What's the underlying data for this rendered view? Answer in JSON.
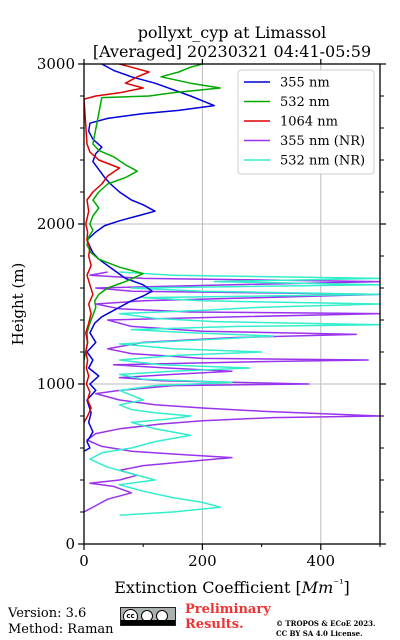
{
  "chart_data": {
    "type": "line",
    "title": "pollyxt_cyp at Limassol",
    "subtitle": "[Averaged] 20230321 04:41-05:59",
    "xlabel": "Extinction Coefficient [Mm⁻¹]",
    "ylabel": "Height (m)",
    "xlim": [
      0,
      500
    ],
    "ylim": [
      0,
      3000
    ],
    "xticks": [
      "0",
      "200",
      "400"
    ],
    "xtick_values": [
      0,
      200,
      400
    ],
    "yticks": [
      "0",
      "1000",
      "2000",
      "3000"
    ],
    "ytick_values": [
      0,
      1000,
      2000,
      3000
    ],
    "grid": true,
    "legend_position": "top-right",
    "series": [
      {
        "name": "355 nm",
        "color": "#0000dd",
        "points": [
          [
            0,
            580
          ],
          [
            10,
            600
          ],
          [
            5,
            640
          ],
          [
            15,
            700
          ],
          [
            8,
            760
          ],
          [
            12,
            820
          ],
          [
            5,
            900
          ],
          [
            20,
            960
          ],
          [
            10,
            1000
          ],
          [
            25,
            1050
          ],
          [
            8,
            1100
          ],
          [
            15,
            1150
          ],
          [
            5,
            1200
          ],
          [
            20,
            1260
          ],
          [
            10,
            1320
          ],
          [
            18,
            1380
          ],
          [
            30,
            1420
          ],
          [
            55,
            1470
          ],
          [
            80,
            1520
          ],
          [
            100,
            1550
          ],
          [
            115,
            1580
          ],
          [
            100,
            1620
          ],
          [
            70,
            1660
          ],
          [
            55,
            1700
          ],
          [
            40,
            1740
          ],
          [
            25,
            1780
          ],
          [
            15,
            1820
          ],
          [
            10,
            1860
          ],
          [
            5,
            1900
          ],
          [
            20,
            1950
          ],
          [
            35,
            1990
          ],
          [
            60,
            2020
          ],
          [
            90,
            2050
          ],
          [
            120,
            2080
          ],
          [
            100,
            2120
          ],
          [
            80,
            2150
          ],
          [
            60,
            2200
          ],
          [
            45,
            2250
          ],
          [
            35,
            2290
          ],
          [
            25,
            2340
          ],
          [
            15,
            2390
          ],
          [
            20,
            2440
          ],
          [
            30,
            2480
          ],
          [
            15,
            2530
          ],
          [
            8,
            2580
          ],
          [
            10,
            2630
          ],
          [
            40,
            2660
          ],
          [
            100,
            2690
          ],
          [
            160,
            2710
          ],
          [
            220,
            2740
          ],
          [
            200,
            2770
          ],
          [
            180,
            2800
          ],
          [
            150,
            2840
          ],
          [
            120,
            2880
          ],
          [
            80,
            2920
          ],
          [
            50,
            2960
          ],
          [
            30,
            3000
          ]
        ]
      },
      {
        "name": "532 nm",
        "color": "#00aa00",
        "points": [
          [
            0,
            1150
          ],
          [
            3,
            1200
          ],
          [
            6,
            1260
          ],
          [
            5,
            1320
          ],
          [
            10,
            1380
          ],
          [
            15,
            1430
          ],
          [
            20,
            1480
          ],
          [
            18,
            1520
          ],
          [
            25,
            1560
          ],
          [
            40,
            1600
          ],
          [
            70,
            1640
          ],
          [
            100,
            1690
          ],
          [
            60,
            1730
          ],
          [
            25,
            1780
          ],
          [
            12,
            1820
          ],
          [
            5,
            1870
          ],
          [
            8,
            1920
          ],
          [
            15,
            1960
          ],
          [
            10,
            2000
          ],
          [
            15,
            2050
          ],
          [
            25,
            2100
          ],
          [
            15,
            2150
          ],
          [
            25,
            2200
          ],
          [
            40,
            2250
          ],
          [
            70,
            2290
          ],
          [
            90,
            2330
          ],
          [
            70,
            2370
          ],
          [
            50,
            2420
          ],
          [
            25,
            2460
          ],
          [
            15,
            2500
          ],
          [
            30,
            2790
          ],
          [
            110,
            2800
          ],
          [
            150,
            2820
          ],
          [
            230,
            2850
          ],
          [
            180,
            2880
          ],
          [
            130,
            2920
          ],
          [
            160,
            2950
          ],
          [
            180,
            2980
          ],
          [
            200,
            3000
          ]
        ]
      },
      {
        "name": "1064 nm",
        "color": "#dd0000",
        "points": [
          [
            0,
            760
          ],
          [
            6,
            800
          ],
          [
            12,
            850
          ],
          [
            6,
            900
          ],
          [
            10,
            950
          ],
          [
            4,
            1000
          ],
          [
            8,
            1050
          ],
          [
            4,
            1100
          ],
          [
            6,
            1150
          ],
          [
            3,
            1200
          ],
          [
            6,
            1260
          ],
          [
            3,
            1320
          ],
          [
            8,
            1380
          ],
          [
            12,
            1440
          ],
          [
            8,
            1500
          ],
          [
            15,
            1560
          ],
          [
            10,
            1620
          ],
          [
            5,
            1680
          ],
          [
            12,
            1740
          ],
          [
            8,
            1800
          ],
          [
            10,
            1850
          ],
          [
            5,
            1900
          ],
          [
            6,
            1950
          ],
          [
            3,
            2000
          ],
          [
            8,
            2080
          ],
          [
            5,
            2150
          ],
          [
            15,
            2200
          ],
          [
            30,
            2250
          ],
          [
            40,
            2300
          ],
          [
            60,
            2350
          ],
          [
            25,
            2400
          ],
          [
            10,
            2450
          ],
          [
            5,
            2500
          ],
          [
            0,
            2780
          ],
          [
            20,
            2800
          ],
          [
            60,
            2820
          ],
          [
            100,
            2850
          ],
          [
            70,
            2880
          ],
          [
            90,
            2920
          ],
          [
            110,
            2950
          ],
          [
            80,
            2980
          ],
          [
            60,
            3000
          ]
        ]
      },
      {
        "name": "355 nm (NR)",
        "color": "#9933ee",
        "points": [
          [
            0,
            200
          ],
          [
            20,
            240
          ],
          [
            40,
            280
          ],
          [
            80,
            320
          ],
          [
            50,
            360
          ],
          [
            10,
            380
          ],
          [
            60,
            400
          ],
          [
            90,
            430
          ],
          [
            60,
            460
          ],
          [
            100,
            490
          ],
          [
            190,
            520
          ],
          [
            250,
            540
          ],
          [
            160,
            560
          ],
          [
            80,
            580
          ],
          [
            30,
            610
          ],
          [
            5,
            650
          ],
          [
            20,
            690
          ],
          [
            60,
            720
          ],
          [
            130,
            750
          ],
          [
            200,
            770
          ],
          [
            320,
            790
          ],
          [
            500,
            800
          ],
          [
            430,
            810
          ],
          [
            300,
            830
          ],
          [
            200,
            850
          ],
          [
            120,
            870
          ],
          [
            60,
            900
          ],
          [
            20,
            940
          ],
          [
            60,
            960
          ],
          [
            150,
            990
          ],
          [
            380,
            1000
          ],
          [
            260,
            1010
          ],
          [
            130,
            1020
          ],
          [
            60,
            1040
          ],
          [
            150,
            1060
          ],
          [
            250,
            1080
          ],
          [
            140,
            1100
          ],
          [
            50,
            1120
          ],
          [
            300,
            1140
          ],
          [
            480,
            1150
          ],
          [
            200,
            1160
          ],
          [
            80,
            1190
          ],
          [
            40,
            1220
          ],
          [
            100,
            1260
          ],
          [
            250,
            1290
          ],
          [
            460,
            1310
          ],
          [
            200,
            1330
          ],
          [
            80,
            1360
          ],
          [
            40,
            1400
          ],
          [
            260,
            1420
          ],
          [
            500,
            1440
          ],
          [
            180,
            1450
          ],
          [
            60,
            1470
          ],
          [
            20,
            1500
          ],
          [
            100,
            1520
          ],
          [
            300,
            1540
          ],
          [
            500,
            1560
          ],
          [
            80,
            1580
          ],
          [
            20,
            1600
          ],
          [
            250,
            1620
          ],
          [
            500,
            1640
          ],
          [
            100,
            1660
          ],
          [
            10,
            1680
          ],
          [
            40,
            1700
          ]
        ]
      },
      {
        "name": "532 nm (NR)",
        "color": "#33eecc",
        "points": [
          [
            60,
            180
          ],
          [
            150,
            200
          ],
          [
            230,
            230
          ],
          [
            200,
            260
          ],
          [
            150,
            290
          ],
          [
            100,
            330
          ],
          [
            60,
            370
          ],
          [
            120,
            400
          ],
          [
            80,
            440
          ],
          [
            40,
            480
          ],
          [
            10,
            530
          ],
          [
            30,
            570
          ],
          [
            80,
            600
          ],
          [
            120,
            640
          ],
          [
            180,
            680
          ],
          [
            120,
            720
          ],
          [
            80,
            760
          ],
          [
            140,
            780
          ],
          [
            180,
            800
          ],
          [
            120,
            820
          ],
          [
            80,
            840
          ],
          [
            60,
            870
          ],
          [
            100,
            900
          ],
          [
            80,
            930
          ],
          [
            60,
            960
          ],
          [
            120,
            990
          ],
          [
            250,
            1010
          ],
          [
            100,
            1030
          ],
          [
            60,
            1060
          ],
          [
            150,
            1080
          ],
          [
            280,
            1100
          ],
          [
            130,
            1120
          ],
          [
            60,
            1150
          ],
          [
            160,
            1180
          ],
          [
            300,
            1200
          ],
          [
            150,
            1220
          ],
          [
            60,
            1250
          ],
          [
            220,
            1280
          ],
          [
            320,
            1300
          ],
          [
            180,
            1320
          ],
          [
            80,
            1340
          ],
          [
            260,
            1360
          ],
          [
            500,
            1370
          ],
          [
            220,
            1390
          ],
          [
            120,
            1410
          ],
          [
            60,
            1440
          ],
          [
            200,
            1460
          ],
          [
            300,
            1480
          ],
          [
            500,
            1500
          ],
          [
            200,
            1520
          ],
          [
            100,
            1540
          ],
          [
            500,
            1560
          ],
          [
            200,
            1580
          ],
          [
            80,
            1600
          ],
          [
            500,
            1620
          ],
          [
            220,
            1640
          ],
          [
            500,
            1660
          ],
          [
            150,
            1680
          ],
          [
            60,
            1700
          ]
        ]
      }
    ]
  },
  "footer": {
    "version": "Version: 3.6",
    "method": "Method: Raman",
    "preliminary_line1": "Preliminary",
    "preliminary_line2": "Results.",
    "credit_line1": "© TROPOS & ECoE 2023.",
    "credit_line2": "CC BY SA 4.0 License.",
    "badge_cc": "cc"
  }
}
